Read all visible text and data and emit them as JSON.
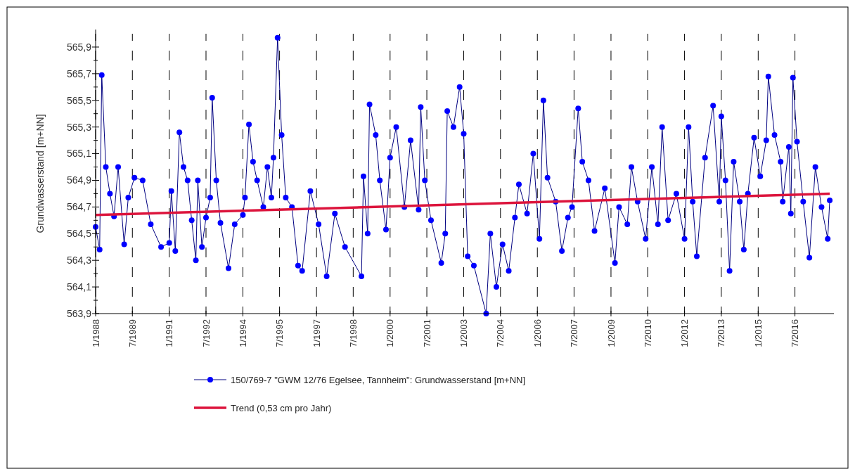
{
  "chart_data": {
    "type": "line",
    "ylabel": "Grundwasserstand [m+NN]",
    "xlim": [
      "1988-01",
      "2018-02"
    ],
    "ylim": [
      563.9,
      566.0
    ],
    "xticks": [
      {
        "value": "1988-01",
        "label": "1/1988"
      },
      {
        "value": "1989-07",
        "label": "7/1989"
      },
      {
        "value": "1991-01",
        "label": "1/1991"
      },
      {
        "value": "1992-07",
        "label": "7/1992"
      },
      {
        "value": "1994-01",
        "label": "1/1994"
      },
      {
        "value": "1995-07",
        "label": "7/1995"
      },
      {
        "value": "1997-01",
        "label": "1/1997"
      },
      {
        "value": "1998-07",
        "label": "7/1998"
      },
      {
        "value": "2000-01",
        "label": "1/2000"
      },
      {
        "value": "2001-07",
        "label": "7/2001"
      },
      {
        "value": "2003-01",
        "label": "1/2003"
      },
      {
        "value": "2004-07",
        "label": "7/2004"
      },
      {
        "value": "2006-01",
        "label": "1/2006"
      },
      {
        "value": "2007-07",
        "label": "7/2007"
      },
      {
        "value": "2009-01",
        "label": "1/2009"
      },
      {
        "value": "2010-07",
        "label": "7/2010"
      },
      {
        "value": "2012-01",
        "label": "1/2012"
      },
      {
        "value": "2013-07",
        "label": "7/2013"
      },
      {
        "value": "2015-01",
        "label": "1/2015"
      },
      {
        "value": "2016-07",
        "label": "7/2016"
      }
    ],
    "yticks": [
      {
        "value": 563.9,
        "label": "563,9"
      },
      {
        "value": 564.0,
        "label": null
      },
      {
        "value": 564.1,
        "label": "564,1"
      },
      {
        "value": 564.2,
        "label": null
      },
      {
        "value": 564.3,
        "label": "564,3"
      },
      {
        "value": 564.4,
        "label": null
      },
      {
        "value": 564.5,
        "label": "564,5"
      },
      {
        "value": 564.6,
        "label": null
      },
      {
        "value": 564.7,
        "label": "564,7"
      },
      {
        "value": 564.8,
        "label": null
      },
      {
        "value": 564.9,
        "label": "564,9"
      },
      {
        "value": 565.0,
        "label": null
      },
      {
        "value": 565.1,
        "label": "565,1"
      },
      {
        "value": 565.2,
        "label": null
      },
      {
        "value": 565.3,
        "label": "565,3"
      },
      {
        "value": 565.4,
        "label": null
      },
      {
        "value": 565.5,
        "label": "565,5"
      },
      {
        "value": 565.6,
        "label": null
      },
      {
        "value": 565.7,
        "label": "565,7"
      },
      {
        "value": 565.8,
        "label": null
      },
      {
        "value": 565.9,
        "label": "565,9"
      }
    ],
    "grid": "x",
    "legend": "bottom",
    "series": [
      {
        "name": "150/769-7 \"GWM 12/76 Egelsee, Tannheim\": Grundwasserstand [m+NN]",
        "color": "#0000ff",
        "marker": "circle",
        "x": [
          "1988-01",
          "1988-03",
          "1988-04",
          "1988-06",
          "1988-08",
          "1988-10",
          "1988-12",
          "1989-03",
          "1989-05",
          "1989-08",
          "1989-12",
          "1990-04",
          "1990-09",
          "1991-01",
          "1991-02",
          "1991-04",
          "1991-06",
          "1991-08",
          "1991-10",
          "1991-12",
          "1992-02",
          "1992-03",
          "1992-05",
          "1992-07",
          "1992-09",
          "1992-10",
          "1992-12",
          "1993-02",
          "1993-06",
          "1993-09",
          "1994-01",
          "1994-02",
          "1994-04",
          "1994-06",
          "1994-08",
          "1994-11",
          "1995-01",
          "1995-03",
          "1995-04",
          "1995-06",
          "1995-08",
          "1995-10",
          "1996-01",
          "1996-04",
          "1996-06",
          "1996-10",
          "1997-02",
          "1997-06",
          "1997-10",
          "1998-03",
          "1998-11",
          "1998-12",
          "1999-02",
          "1999-03",
          "1999-06",
          "1999-08",
          "1999-11",
          "2000-01",
          "2000-04",
          "2000-08",
          "2000-11",
          "2001-03",
          "2001-04",
          "2001-06",
          "2001-09",
          "2002-02",
          "2002-04",
          "2002-05",
          "2002-08",
          "2002-11",
          "2003-01",
          "2003-03",
          "2003-06",
          "2003-12",
          "2004-02",
          "2004-05",
          "2004-08",
          "2004-11",
          "2005-02",
          "2005-04",
          "2005-08",
          "2005-11",
          "2006-02",
          "2006-04",
          "2006-06",
          "2006-10",
          "2007-01",
          "2007-04",
          "2007-06",
          "2007-09",
          "2007-11",
          "2008-02",
          "2008-05",
          "2008-10",
          "2009-03",
          "2009-05",
          "2009-09",
          "2009-11",
          "2010-02",
          "2010-06",
          "2010-09",
          "2010-12",
          "2011-02",
          "2011-05",
          "2011-09",
          "2012-01",
          "2012-03",
          "2012-05",
          "2012-07",
          "2012-11",
          "2013-03",
          "2013-06",
          "2013-07",
          "2013-09",
          "2013-11",
          "2014-01",
          "2014-04",
          "2014-06",
          "2014-08",
          "2014-11",
          "2015-02",
          "2015-05",
          "2015-06",
          "2015-09",
          "2015-12",
          "2016-01",
          "2016-04",
          "2016-05",
          "2016-06",
          "2016-08",
          "2016-11",
          "2017-02",
          "2017-05",
          "2017-08",
          "2017-11",
          "2017-12"
        ],
        "values": [
          564.55,
          564.38,
          565.69,
          565.0,
          564.8,
          564.63,
          565.0,
          564.42,
          564.77,
          564.92,
          564.9,
          564.57,
          564.4,
          564.43,
          564.82,
          564.37,
          565.26,
          565.0,
          564.9,
          564.6,
          564.3,
          564.9,
          564.4,
          564.62,
          564.77,
          565.52,
          564.9,
          564.58,
          564.24,
          564.57,
          564.64,
          564.77,
          565.32,
          565.04,
          564.9,
          564.7,
          565.0,
          564.77,
          565.07,
          565.97,
          565.24,
          564.77,
          564.7,
          564.26,
          564.22,
          564.82,
          564.57,
          564.18,
          564.65,
          564.4,
          564.18,
          564.93,
          564.5,
          565.47,
          565.24,
          564.9,
          564.53,
          565.07,
          565.3,
          564.7,
          565.2,
          564.68,
          565.45,
          564.9,
          564.6,
          564.28,
          564.5,
          565.42,
          565.3,
          565.6,
          565.25,
          564.33,
          564.26,
          563.9,
          564.5,
          564.1,
          564.42,
          564.22,
          564.62,
          564.87,
          564.65,
          565.1,
          564.46,
          565.5,
          564.92,
          564.74,
          564.37,
          564.62,
          564.7,
          565.44,
          565.04,
          564.9,
          564.52,
          564.84,
          564.28,
          564.7,
          564.57,
          565.0,
          564.74,
          564.46,
          565.0,
          564.57,
          565.3,
          564.6,
          564.8,
          564.46,
          565.3,
          564.74,
          564.33,
          565.07,
          565.46,
          564.74,
          565.38,
          564.9,
          564.22,
          565.04,
          564.74,
          564.38,
          564.8,
          565.22,
          564.93,
          565.2,
          565.68,
          565.24,
          565.04,
          564.74,
          565.15,
          564.65,
          565.67,
          565.19,
          564.74,
          564.32,
          565.0,
          564.7,
          564.46,
          564.75
        ]
      },
      {
        "name": "Trend (0,53 cm pro Jahr)",
        "color": "#dc143c",
        "marker": "none",
        "x": [
          "1988-01",
          "2017-12"
        ],
        "values": [
          564.64,
          564.8
        ]
      }
    ]
  }
}
